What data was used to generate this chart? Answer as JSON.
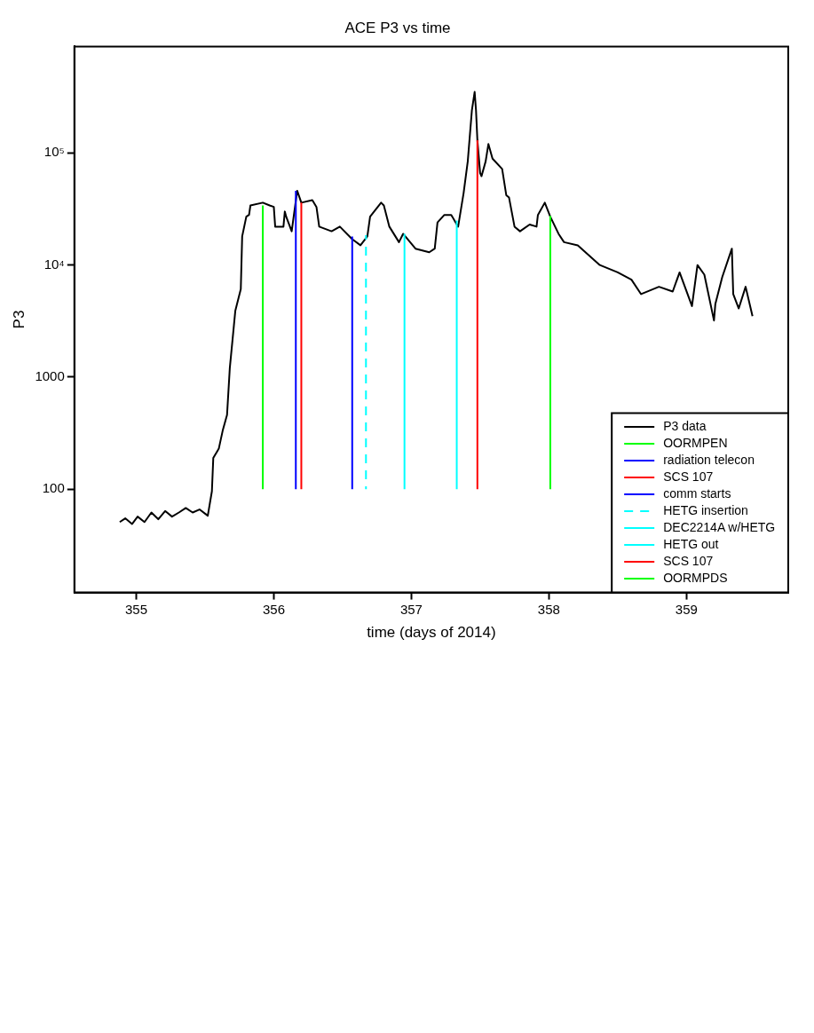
{
  "chart_data": {
    "type": "line",
    "title": "ACE P3 vs time",
    "xlabel": "time (days of 2014)",
    "ylabel": "P3",
    "log": "y",
    "xlim": [
      354.55,
      359.74
    ],
    "xticks": [
      355,
      356,
      357,
      358,
      359
    ],
    "ylim": [
      12,
      890000
    ],
    "yticks": [
      100,
      1000,
      {
        "value": 10000,
        "label": "10⁴"
      },
      {
        "value": 100000,
        "label": "10⁵"
      }
    ],
    "grid": false,
    "legend": "bottom right",
    "marker": "none",
    "series": [
      {
        "name": "P3 data",
        "color": "#000000",
        "x": [
          354.88,
          354.92,
          354.97,
          355.01,
          355.06,
          355.11,
          355.16,
          355.21,
          355.26,
          355.31,
          355.36,
          355.41,
          355.46,
          355.52,
          355.55,
          355.56,
          355.6,
          355.63,
          355.66,
          355.68,
          355.71,
          355.72,
          355.76,
          355.77,
          355.8,
          355.82,
          355.83,
          355.92,
          355.97,
          356.0,
          356.01,
          356.02,
          356.07,
          356.08,
          356.09,
          356.13,
          356.17,
          356.2,
          356.28,
          356.31,
          356.33,
          356.42,
          356.48,
          356.57,
          356.63,
          356.68,
          356.7,
          356.78,
          356.8,
          356.84,
          356.91,
          356.94,
          357.03,
          357.13,
          357.17,
          357.19,
          357.24,
          357.29,
          357.34,
          357.38,
          357.41,
          357.44,
          357.46,
          357.47,
          357.48,
          357.5,
          357.51,
          357.54,
          357.56,
          357.59,
          357.66,
          357.69,
          357.71,
          357.75,
          357.79,
          357.86,
          357.91,
          357.92,
          357.97,
          358.01,
          358.07,
          358.11,
          358.21,
          358.37,
          358.5,
          358.6,
          358.67,
          358.8,
          358.9,
          358.95,
          359.04,
          359.08,
          359.13,
          359.2,
          359.21,
          359.26,
          359.33,
          359.34,
          359.38,
          359.43,
          359.48
        ],
        "values": [
          51,
          55,
          49,
          57,
          51,
          62,
          54,
          64,
          57,
          62,
          68,
          62,
          66,
          58,
          96,
          190,
          230,
          340,
          460,
          1200,
          2900,
          3900,
          6100,
          18000,
          27000,
          28000,
          34000,
          36000,
          34000,
          33000,
          22000,
          22000,
          22000,
          30000,
          27000,
          20000,
          46000,
          36000,
          38000,
          33000,
          22000,
          20000,
          22000,
          17000,
          15000,
          18000,
          27000,
          36000,
          34000,
          22000,
          16000,
          19000,
          14000,
          13000,
          14000,
          24000,
          28000,
          28000,
          22000,
          44000,
          84000,
          240000,
          350000,
          240000,
          130000,
          66000,
          62000,
          84000,
          120000,
          89000,
          72000,
          42000,
          40000,
          22000,
          20000,
          23000,
          22000,
          28000,
          36000,
          27000,
          19000,
          16000,
          15000,
          10000,
          8600,
          7400,
          5500,
          6400,
          5800,
          8600,
          4300,
          10000,
          8200,
          3200,
          4500,
          7800,
          14000,
          5500,
          4100,
          6400,
          3500
        ]
      },
      {
        "name": "OORMPEN",
        "color": "#00ff00",
        "x": [
          355.92,
          355.92
        ],
        "values": [
          100,
          34000
        ]
      },
      {
        "name": "radiation telecon",
        "color": "#0000ff",
        "x": [
          356.16,
          356.16
        ],
        "values": [
          100,
          46000
        ]
      },
      {
        "name": "SCS 107",
        "color": "#ff0000",
        "x": [
          356.2,
          356.2
        ],
        "values": [
          100,
          36000
        ]
      },
      {
        "name": "comm starts",
        "color": "#0000ff",
        "x": [
          356.57,
          356.57
        ],
        "values": [
          100,
          18000
        ]
      },
      {
        "name": "HETG insertion",
        "color": "#00ffff",
        "line_style": "dashed",
        "x": [
          356.67,
          356.67
        ],
        "values": [
          100,
          18500
        ]
      },
      {
        "name": "DEC2214A w/HETG",
        "color": "#00ffff",
        "x": [
          356.95,
          356.95
        ],
        "values": [
          100,
          19000
        ]
      },
      {
        "name": "HETG out",
        "color": "#00ffff",
        "x": [
          357.33,
          357.33
        ],
        "values": [
          100,
          25000
        ]
      },
      {
        "name": "SCS 107",
        "color": "#ff0000",
        "x": [
          357.48,
          357.48
        ],
        "values": [
          100,
          130000
        ]
      },
      {
        "name": "OORMPDS",
        "color": "#00ff00",
        "x": [
          358.01,
          358.01
        ],
        "values": [
          100,
          27500
        ]
      }
    ]
  }
}
